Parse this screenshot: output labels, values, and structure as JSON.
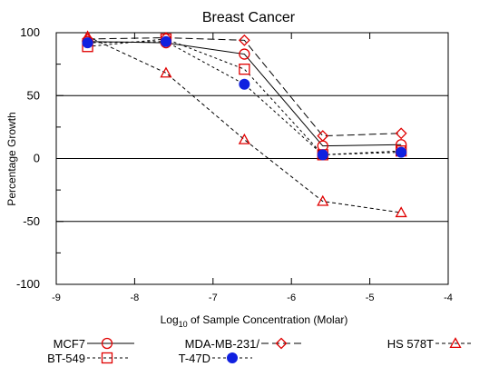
{
  "chart_data": {
    "type": "line",
    "title": "Breast Cancer",
    "xlabel": {
      "prefix": "Log",
      "sub": "10",
      "suffix": " of Sample Concentration (Molar)"
    },
    "ylabel": "Percentage Growth",
    "xlim": [
      -9,
      -4
    ],
    "ylim": [
      -100,
      100
    ],
    "xticks": [
      -9,
      -8,
      -7,
      -6,
      -5,
      -4
    ],
    "yticks": [
      -100,
      -50,
      0,
      50,
      100
    ],
    "grid_y": [
      -50,
      0,
      50
    ],
    "x": [
      -8.6,
      -7.6,
      -6.6,
      -5.6,
      -4.6
    ],
    "series": [
      {
        "name": "MCF7",
        "marker": "circle",
        "dash": "",
        "color": "#e00000",
        "values": [
          93,
          92,
          83,
          10,
          11
        ]
      },
      {
        "name": "MDA-MB-231/",
        "marker": "diamond",
        "dash": "8,4",
        "color": "#e00000",
        "values": [
          95,
          96,
          94,
          18,
          20
        ]
      },
      {
        "name": "HS 578T",
        "marker": "triangle",
        "dash": "4,3",
        "color": "#e00000",
        "values": [
          97,
          68,
          15,
          -34,
          -43
        ]
      },
      {
        "name": "BT-549",
        "marker": "square",
        "dash": "3,3",
        "color": "#e00000",
        "values": [
          89,
          95,
          71,
          3,
          6
        ]
      },
      {
        "name": "T-47D",
        "marker": "filled-circle",
        "dash": "3,3",
        "color": "#1020e0",
        "values": [
          92,
          93,
          59,
          3,
          5
        ]
      }
    ]
  }
}
